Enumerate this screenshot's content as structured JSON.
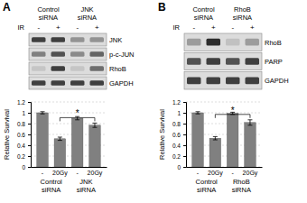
{
  "panels": [
    {
      "label": "A",
      "groups": [
        "Control siRNA",
        "JNK siRNA"
      ],
      "treatment": "IR",
      "lanes": [
        "-",
        "+",
        "-",
        "+"
      ],
      "rows": [
        "JNK",
        "p-c-JUN",
        "RhoB",
        "GAPDH"
      ]
    },
    {
      "label": "B",
      "groups": [
        "Control siRNA",
        "RhoB siRNA"
      ],
      "treatment": "IR",
      "lanes": [
        "-",
        "+",
        "-",
        "+"
      ],
      "rows": [
        "RhoB",
        "PARP",
        "GAPDH"
      ]
    }
  ],
  "chart_data": [
    {
      "type": "bar",
      "y_label": "Relative Survival",
      "categories": [
        "-",
        "20Gy",
        "-",
        "20Gy"
      ],
      "groups": [
        "Control siRNA",
        "JNK siRNA"
      ],
      "values": [
        1.0,
        0.52,
        0.9,
        0.77
      ],
      "errors": [
        0.02,
        0.03,
        0.03,
        0.04
      ],
      "color": "#808080",
      "ylim": [
        0,
        1.2
      ],
      "yticks": [
        0,
        0.2,
        0.4,
        0.6,
        0.8,
        1,
        1.2
      ],
      "annotations": [
        "*"
      ]
    },
    {
      "type": "bar",
      "y_label": "Relative Survival",
      "categories": [
        "-",
        "20Gy",
        "-",
        "20Gy"
      ],
      "groups": [
        "Control siRNA",
        "RhoB siRNA"
      ],
      "values": [
        1.0,
        0.53,
        0.99,
        0.82
      ],
      "errors": [
        0.02,
        0.03,
        0.02,
        0.05
      ],
      "color": "#808080",
      "ylim": [
        0,
        1.2
      ],
      "yticks": [
        0,
        0.2,
        0.4,
        0.6,
        0.8,
        1,
        1.2
      ],
      "annotations": [
        "*"
      ]
    }
  ]
}
